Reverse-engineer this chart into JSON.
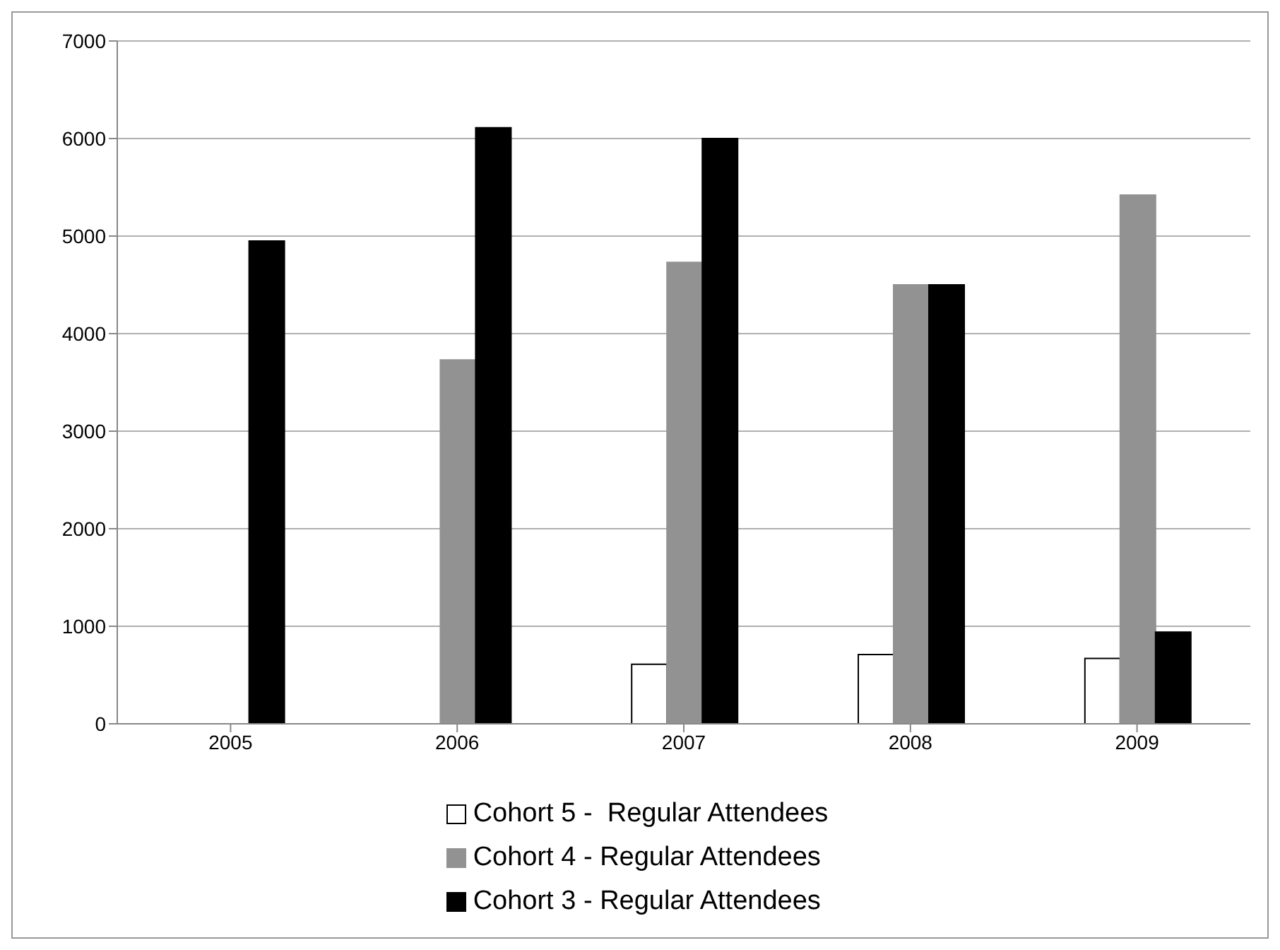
{
  "chart_data": {
    "type": "bar",
    "categories": [
      "2005",
      "2006",
      "2007",
      "2008",
      "2009"
    ],
    "series": [
      {
        "name": "Cohort 5 -  Regular Attendees",
        "color": "#ffffff",
        "values": [
          null,
          null,
          610,
          710,
          670
        ]
      },
      {
        "name": "Cohort 4 - Regular Attendees",
        "color": "#929292",
        "values": [
          null,
          3730,
          4730,
          4500,
          5420
        ]
      },
      {
        "name": "Cohort 3 - Regular Attendees",
        "color": "#000000",
        "values": [
          4950,
          6110,
          6000,
          4500,
          940
        ]
      }
    ],
    "ylim": [
      0,
      7000
    ],
    "yticks": [
      0,
      1000,
      2000,
      3000,
      4000,
      5000,
      6000,
      7000
    ],
    "grid": "y",
    "legend": "bottom"
  }
}
